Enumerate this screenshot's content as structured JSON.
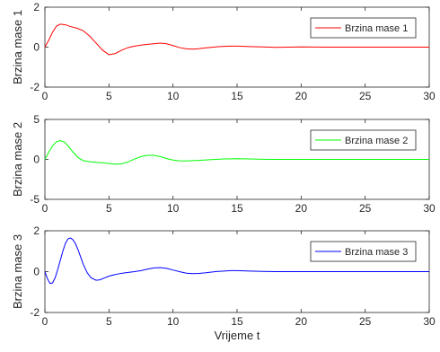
{
  "chart_data": [
    {
      "type": "line",
      "ylabel": "Brzina mase 1",
      "xlim": [
        0,
        30
      ],
      "ylim": [
        -2,
        2
      ],
      "xticks": [
        0,
        5,
        10,
        15,
        20,
        25,
        30
      ],
      "yticks": [
        -2,
        0,
        2
      ],
      "legend_position": "top-right",
      "series": [
        {
          "name": "Brzina mase 1",
          "color": "#ff0000",
          "x": [
            0,
            0.3,
            0.6,
            0.9,
            1.2,
            1.6,
            2.0,
            2.5,
            3.0,
            3.5,
            4.0,
            4.5,
            5.0,
            5.5,
            6.0,
            6.5,
            7.0,
            7.5,
            8.0,
            8.5,
            9.0,
            9.5,
            10.0,
            10.5,
            11.0,
            11.5,
            12.0,
            12.5,
            13.0,
            13.5,
            14.0,
            14.5,
            15.0,
            16.0,
            17.0,
            18.0,
            19.0,
            20.0,
            22.0,
            25.0,
            28.0,
            30.0
          ],
          "y": [
            0,
            0.35,
            0.75,
            1.05,
            1.15,
            1.12,
            1.03,
            0.95,
            0.82,
            0.55,
            0.2,
            -0.15,
            -0.38,
            -0.32,
            -0.15,
            -0.02,
            0.05,
            0.1,
            0.14,
            0.17,
            0.2,
            0.17,
            0.08,
            -0.02,
            -0.08,
            -0.1,
            -0.08,
            -0.04,
            -0.01,
            0.02,
            0.04,
            0.05,
            0.05,
            0.03,
            0.01,
            -0.01,
            0.0,
            0.01,
            0.0,
            0.0,
            0.0,
            0.0
          ]
        }
      ]
    },
    {
      "type": "line",
      "ylabel": "Brzina mase 2",
      "xlim": [
        0,
        30
      ],
      "ylim": [
        -5,
        5
      ],
      "xticks": [
        0,
        5,
        10,
        15,
        20,
        25,
        30
      ],
      "yticks": [
        -5,
        0,
        5
      ],
      "legend_position": "top-right",
      "series": [
        {
          "name": "Brzina mase 2",
          "color": "#00ff00",
          "x": [
            0,
            0.3,
            0.6,
            0.9,
            1.2,
            1.5,
            1.8,
            2.2,
            2.6,
            3.0,
            3.5,
            4.0,
            4.5,
            5.0,
            5.5,
            6.0,
            6.5,
            7.0,
            7.5,
            8.0,
            8.5,
            9.0,
            9.5,
            10.0,
            10.5,
            11.0,
            12.0,
            13.0,
            14.0,
            15.0,
            16.0,
            17.0,
            18.0,
            20.0,
            22.0,
            25.0,
            28.0,
            30.0
          ],
          "y": [
            0,
            0.9,
            1.7,
            2.2,
            2.35,
            2.2,
            1.7,
            0.9,
            0.2,
            -0.15,
            -0.3,
            -0.38,
            -0.42,
            -0.5,
            -0.6,
            -0.55,
            -0.3,
            0.05,
            0.35,
            0.5,
            0.5,
            0.35,
            0.1,
            -0.08,
            -0.18,
            -0.2,
            -0.12,
            -0.03,
            0.05,
            0.08,
            0.06,
            0.02,
            0.0,
            0.0,
            0.0,
            0.0,
            0.0,
            0.0
          ]
        }
      ]
    },
    {
      "type": "line",
      "ylabel": "Brzina mase 3",
      "xlabel": "Vrijeme t",
      "xlim": [
        0,
        30
      ],
      "ylim": [
        -2,
        2
      ],
      "xticks": [
        0,
        5,
        10,
        15,
        20,
        25,
        30
      ],
      "yticks": [
        -2,
        0,
        2
      ],
      "legend_position": "top-right",
      "series": [
        {
          "name": "Brzina mase 3",
          "color": "#0000ff",
          "x": [
            0,
            0.2,
            0.4,
            0.6,
            0.8,
            1.0,
            1.2,
            1.4,
            1.6,
            1.8,
            2.0,
            2.2,
            2.4,
            2.6,
            2.8,
            3.0,
            3.3,
            3.6,
            4.0,
            4.3,
            4.6,
            5.0,
            5.5,
            6.0,
            6.5,
            7.0,
            7.5,
            8.0,
            8.5,
            9.0,
            9.5,
            10.0,
            10.5,
            11.0,
            11.5,
            12.0,
            12.5,
            13.0,
            13.5,
            14.0,
            14.5,
            15.0,
            16.0,
            17.0,
            18.0,
            20.0,
            22.0,
            25.0,
            28.0,
            30.0
          ],
          "y": [
            0,
            -0.35,
            -0.58,
            -0.55,
            -0.3,
            0.1,
            0.55,
            1.0,
            1.38,
            1.6,
            1.65,
            1.55,
            1.35,
            1.05,
            0.7,
            0.35,
            -0.05,
            -0.3,
            -0.42,
            -0.4,
            -0.32,
            -0.22,
            -0.14,
            -0.08,
            -0.04,
            0.0,
            0.05,
            0.12,
            0.18,
            0.2,
            0.16,
            0.08,
            0.0,
            -0.07,
            -0.1,
            -0.09,
            -0.06,
            -0.02,
            0.01,
            0.03,
            0.05,
            0.05,
            0.03,
            0.01,
            0.0,
            0.0,
            0.0,
            0.0,
            0.0,
            0.0
          ]
        }
      ]
    }
  ]
}
